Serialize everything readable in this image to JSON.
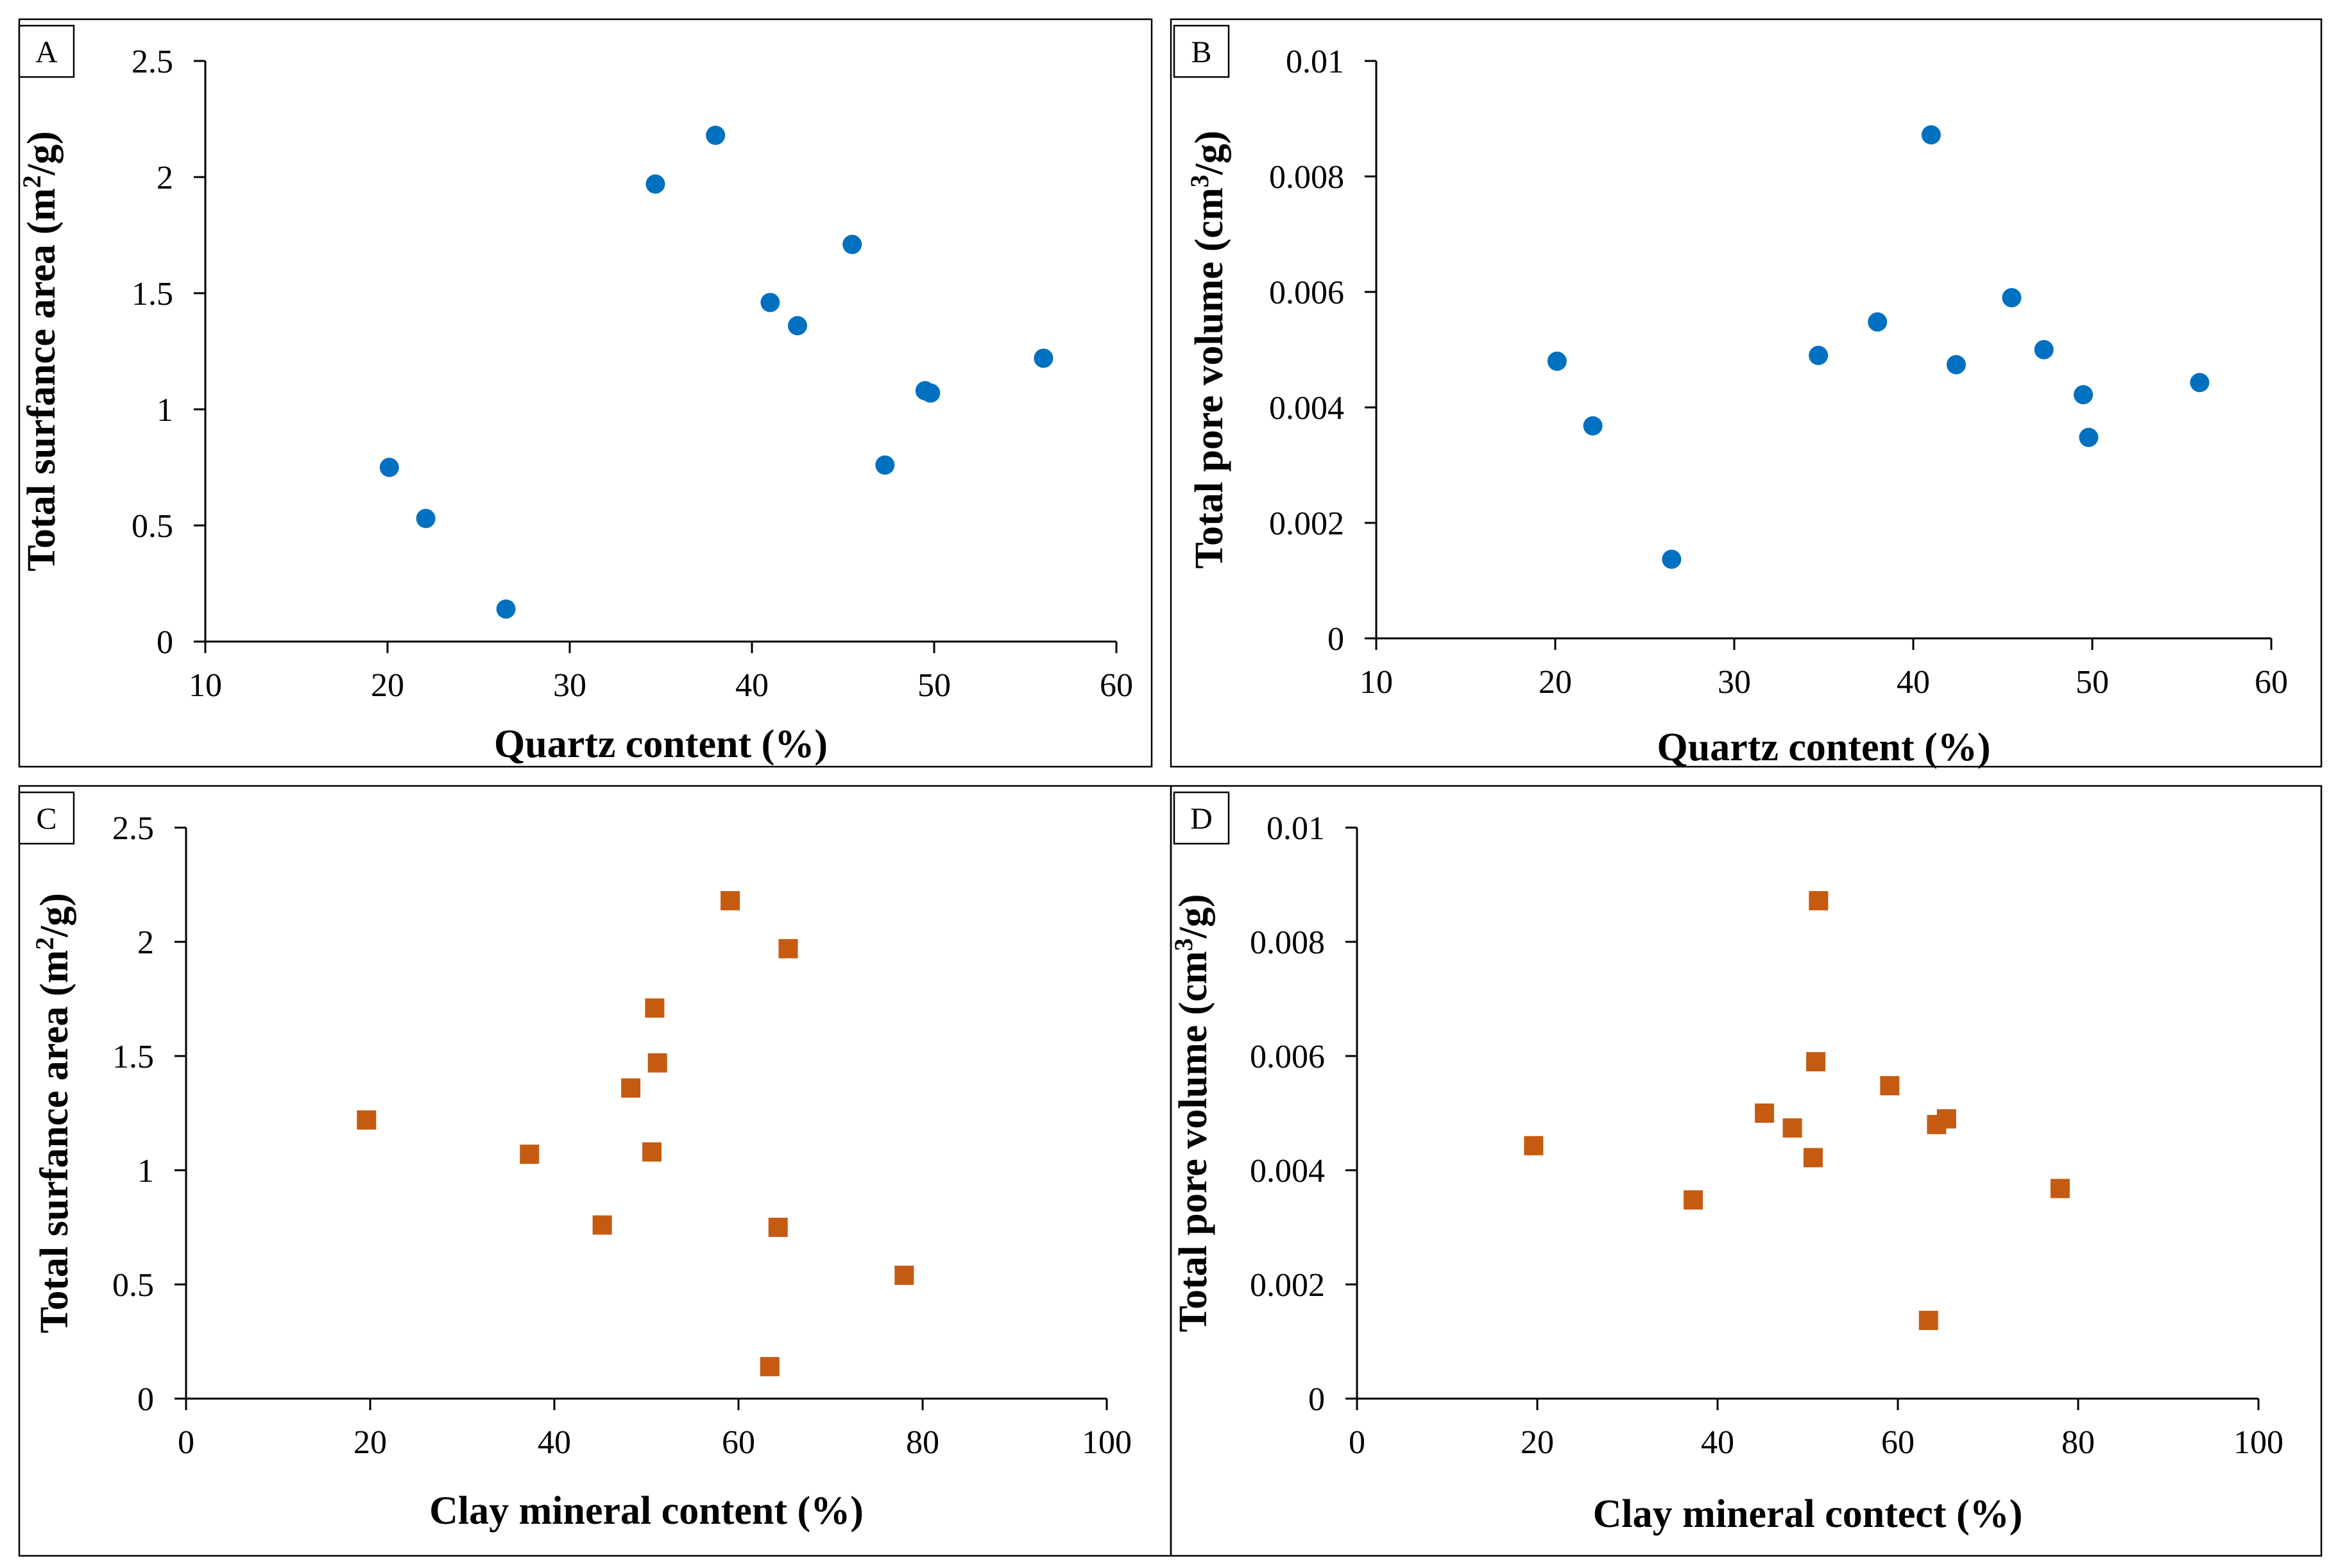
{
  "figure": {
    "colors": {
      "blue": "#0070C0",
      "orange": "#C55A11"
    }
  },
  "chart_data": [
    {
      "id": "A",
      "type": "scatter",
      "panel_label": "A",
      "marker": "circle",
      "color": "#0070C0",
      "xlabel": "Quartz content (%)",
      "ylabel": "Total surfance area (m²/g)",
      "ylabel_parts": [
        "Total surfance area (m",
        "2",
        "/g)"
      ],
      "xlim": [
        10,
        60
      ],
      "ylim": [
        0,
        2.5
      ],
      "xticks": [
        "10",
        "20",
        "30",
        "40",
        "50",
        "60"
      ],
      "yticks": [
        "0",
        "0.5",
        "1",
        "1.5",
        "2",
        "2.5"
      ],
      "points": [
        [
          20.1,
          0.75
        ],
        [
          22.1,
          0.53
        ],
        [
          26.5,
          0.14
        ],
        [
          34.7,
          1.97
        ],
        [
          38.0,
          2.18
        ],
        [
          41.0,
          1.46
        ],
        [
          42.5,
          1.36
        ],
        [
          45.5,
          1.71
        ],
        [
          47.3,
          0.76
        ],
        [
          49.5,
          1.08
        ],
        [
          49.8,
          1.07
        ],
        [
          56.0,
          1.22
        ]
      ]
    },
    {
      "id": "B",
      "type": "scatter",
      "panel_label": "B",
      "marker": "circle",
      "color": "#0070C0",
      "xlabel": "Quartz content (%)",
      "ylabel": "Total pore volume (cm³/g)",
      "ylabel_parts": [
        "Total pore volume (cm",
        "3",
        "/g)"
      ],
      "xlim": [
        10,
        60
      ],
      "ylim": [
        0,
        0.01
      ],
      "xticks": [
        "10",
        "20",
        "30",
        "40",
        "50",
        "60"
      ],
      "yticks": [
        "0",
        "0.002",
        "0.004",
        "0.006",
        "0.008",
        "0.01"
      ],
      "points": [
        [
          20.1,
          0.0048
        ],
        [
          22.1,
          0.00368
        ],
        [
          26.5,
          0.00137
        ],
        [
          34.7,
          0.0049
        ],
        [
          38.0,
          0.00548
        ],
        [
          41.0,
          0.00872
        ],
        [
          42.4,
          0.00474
        ],
        [
          45.5,
          0.0059
        ],
        [
          47.3,
          0.005
        ],
        [
          49.5,
          0.00422
        ],
        [
          49.8,
          0.00348
        ],
        [
          56.0,
          0.00443
        ]
      ]
    },
    {
      "id": "C",
      "type": "scatter",
      "panel_label": "C",
      "marker": "square",
      "color": "#C55A11",
      "xlabel": "Clay mineral content (%)",
      "ylabel": "Total surfance area (m²/g)",
      "ylabel_parts": [
        "Total surfance area (m",
        "2",
        "/g)"
      ],
      "xlim": [
        0,
        100
      ],
      "ylim": [
        0,
        2.5
      ],
      "xticks": [
        "0",
        "20",
        "40",
        "60",
        "80",
        "100"
      ],
      "yticks": [
        "0",
        "0.5",
        "1",
        "1.5",
        "2",
        "2.5"
      ],
      "points": [
        [
          19.6,
          1.22
        ],
        [
          37.3,
          1.07
        ],
        [
          45.2,
          0.76
        ],
        [
          48.3,
          1.36
        ],
        [
          50.6,
          1.08
        ],
        [
          50.9,
          1.71
        ],
        [
          51.2,
          1.47
        ],
        [
          59.1,
          2.18
        ],
        [
          63.4,
          0.14
        ],
        [
          64.3,
          0.75
        ],
        [
          65.4,
          1.97
        ],
        [
          78.0,
          0.54
        ]
      ]
    },
    {
      "id": "D",
      "type": "scatter",
      "panel_label": "D",
      "marker": "square",
      "color": "#C55A11",
      "xlabel": "Clay mineral contect (%)",
      "ylabel": "Total pore volume (cm³/g)",
      "ylabel_parts": [
        "Total pore volume (cm",
        "3",
        "/g)"
      ],
      "xlim": [
        0,
        100
      ],
      "ylim": [
        0,
        0.01
      ],
      "xticks": [
        "0",
        "20",
        "40",
        "60",
        "80",
        "100"
      ],
      "yticks": [
        "0",
        "0.002",
        "0.004",
        "0.006",
        "0.008",
        "0.01"
      ],
      "points": [
        [
          19.6,
          0.00443
        ],
        [
          37.3,
          0.00348
        ],
        [
          45.2,
          0.005
        ],
        [
          48.3,
          0.00474
        ],
        [
          50.6,
          0.00422
        ],
        [
          50.9,
          0.0059
        ],
        [
          51.2,
          0.00872
        ],
        [
          59.1,
          0.00548
        ],
        [
          63.4,
          0.00137
        ],
        [
          64.3,
          0.0048
        ],
        [
          65.4,
          0.0049
        ],
        [
          78.0,
          0.00368
        ]
      ]
    }
  ]
}
